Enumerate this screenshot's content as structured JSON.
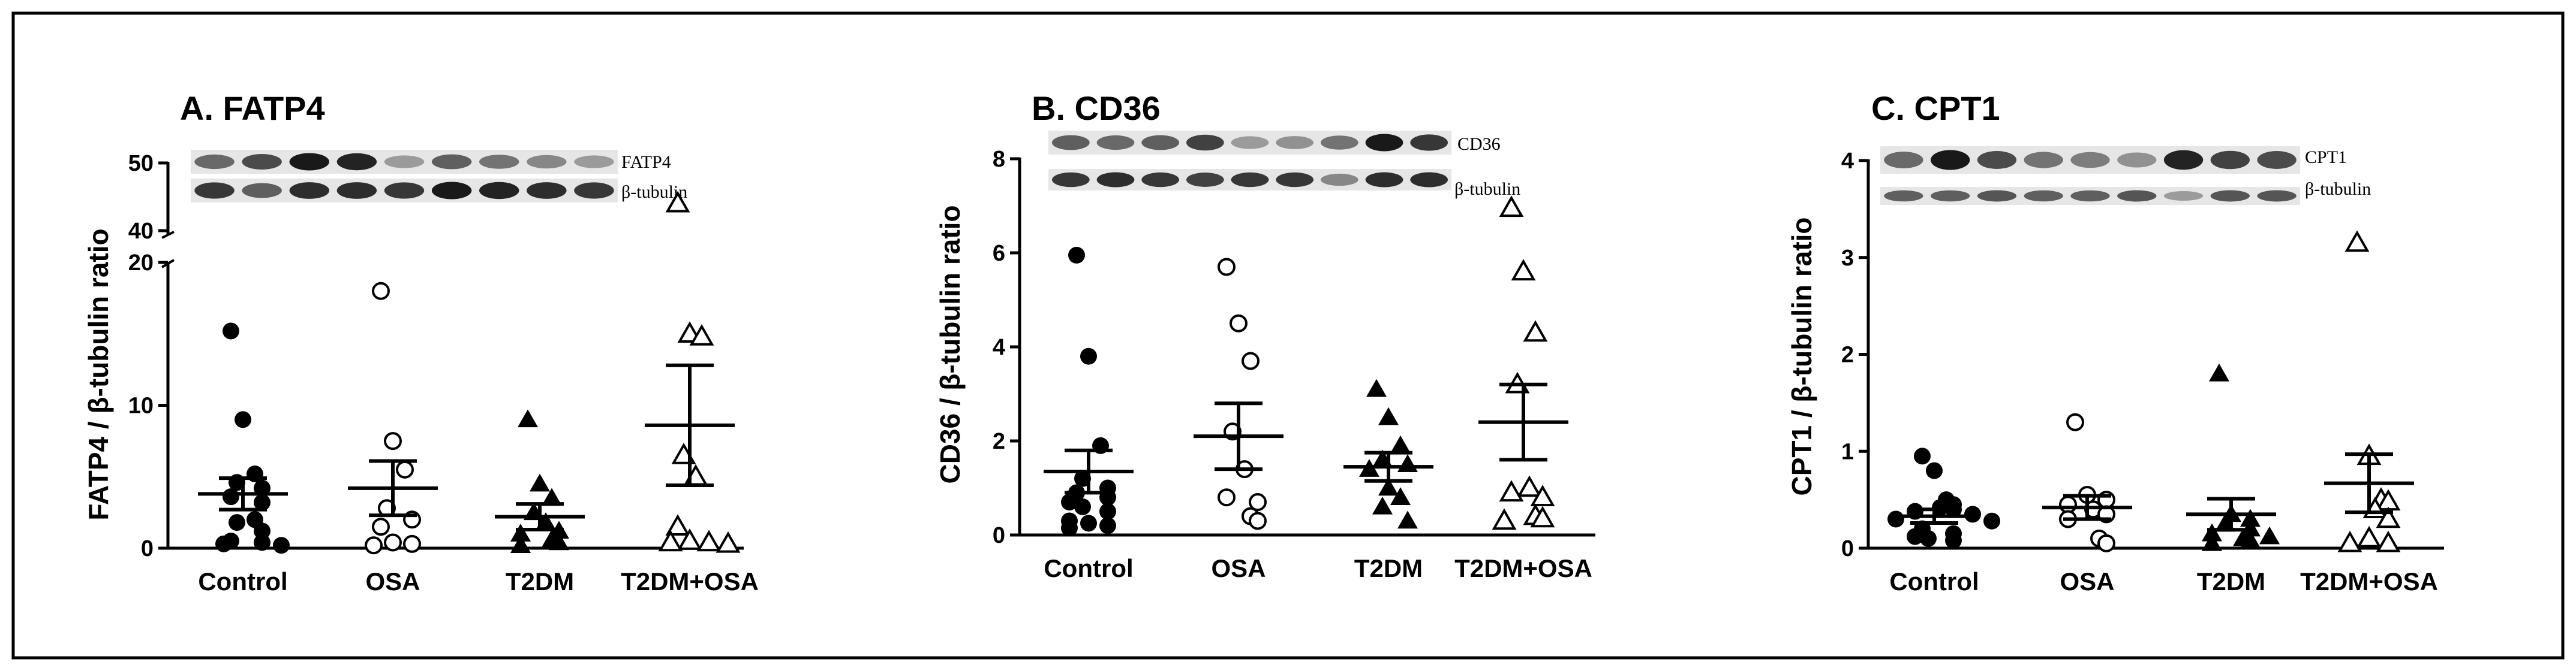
{
  "chart_data": [
    {
      "type": "scatter",
      "title": "A. FATP4",
      "ylabel": "FATP4 / β-tubulin ratio",
      "categories": [
        "Control",
        "OSA",
        "T2DM",
        "T2DM+OSA"
      ],
      "axis_break": true,
      "lower_range": [
        0,
        20
      ],
      "upper_range": [
        40,
        50
      ],
      "lower_ticks": [
        0,
        10,
        20
      ],
      "upper_ticks": [
        40,
        50
      ],
      "blot_labels": [
        "FATP4",
        "β-tubulin"
      ],
      "series": [
        {
          "name": "Control",
          "marker": "filled-circle",
          "values": [
            15.2,
            9.0,
            5.2,
            4.6,
            4.2,
            3.6,
            3.2,
            2.0,
            1.8,
            1.2,
            0.5,
            0.4,
            0.3,
            0.2
          ],
          "mean": 3.8,
          "sem": 1.1
        },
        {
          "name": "OSA",
          "marker": "open-circle",
          "values": [
            18.0,
            7.5,
            5.5,
            2.8,
            2.0,
            1.5,
            0.4,
            0.3,
            0.2
          ],
          "mean": 4.2,
          "sem": 1.9
        },
        {
          "name": "T2DM",
          "marker": "filled-triangle",
          "values": [
            9.0,
            4.5,
            3.5,
            2.5,
            1.8,
            1.2,
            1.0,
            0.6,
            0.4,
            0.2
          ],
          "mean": 2.2,
          "sem": 0.9
        },
        {
          "name": "T2DM+OSA",
          "marker": "open-triangle",
          "values": [
            44.0,
            15.0,
            14.8,
            6.5,
            5.0,
            1.5,
            0.5,
            0.4,
            0.4,
            0.3
          ],
          "mean": 8.6,
          "sem": 4.2
        }
      ]
    },
    {
      "type": "scatter",
      "title": "B. CD36",
      "ylabel": "CD36 / β-tubulin ratio",
      "categories": [
        "Control",
        "OSA",
        "T2DM",
        "T2DM+OSA"
      ],
      "ylim": [
        0,
        8
      ],
      "yticks": [
        0,
        2,
        4,
        6,
        8
      ],
      "blot_labels": [
        "CD36",
        "β-tubulin"
      ],
      "series": [
        {
          "name": "Control",
          "marker": "filled-circle",
          "values": [
            5.95,
            3.8,
            1.9,
            1.2,
            1.0,
            0.9,
            0.8,
            0.7,
            0.6,
            0.5,
            0.3,
            0.25,
            0.2,
            0.15
          ],
          "mean": 1.35,
          "sem": 0.45
        },
        {
          "name": "OSA",
          "marker": "open-circle",
          "values": [
            5.7,
            4.5,
            3.7,
            2.2,
            1.4,
            0.8,
            0.7,
            0.4,
            0.3
          ],
          "mean": 2.1,
          "sem": 0.7
        },
        {
          "name": "T2DM",
          "marker": "filled-triangle",
          "values": [
            3.1,
            2.5,
            1.9,
            1.6,
            1.5,
            1.4,
            1.0,
            0.8,
            0.6,
            0.3
          ],
          "mean": 1.45,
          "sem": 0.3
        },
        {
          "name": "T2DM+OSA",
          "marker": "open-triangle",
          "values": [
            6.95,
            5.6,
            4.3,
            3.2,
            1.0,
            0.9,
            0.8,
            0.4,
            0.35,
            0.3
          ],
          "mean": 2.4,
          "sem": 0.8
        }
      ]
    },
    {
      "type": "scatter",
      "title": "C. CPT1",
      "ylabel": "CPT1 / β-tubulin ratio",
      "categories": [
        "Control",
        "OSA",
        "T2DM",
        "T2DM+OSA"
      ],
      "ylim": [
        0,
        4
      ],
      "yticks": [
        0,
        1,
        2,
        3,
        4
      ],
      "blot_labels": [
        "CPT1",
        "β-tubulin"
      ],
      "series": [
        {
          "name": "Control",
          "marker": "filled-circle",
          "values": [
            0.95,
            0.8,
            0.5,
            0.45,
            0.42,
            0.4,
            0.38,
            0.35,
            0.3,
            0.28,
            0.2,
            0.15,
            0.12,
            0.1,
            0.08
          ],
          "mean": 0.33,
          "sem": 0.07
        },
        {
          "name": "OSA",
          "marker": "open-circle",
          "values": [
            1.3,
            0.55,
            0.5,
            0.45,
            0.4,
            0.35,
            0.3,
            0.1,
            0.05
          ],
          "mean": 0.42,
          "sem": 0.12
        },
        {
          "name": "T2DM",
          "marker": "filled-triangle",
          "values": [
            1.8,
            0.35,
            0.3,
            0.25,
            0.2,
            0.15,
            0.12,
            0.1,
            0.08,
            0.05
          ],
          "mean": 0.35,
          "sem": 0.16
        },
        {
          "name": "T2DM+OSA",
          "marker": "open-triangle",
          "values": [
            3.15,
            0.95,
            0.5,
            0.48,
            0.4,
            0.3,
            0.1,
            0.05,
            0.05
          ],
          "mean": 0.67,
          "sem": 0.3
        }
      ]
    }
  ]
}
